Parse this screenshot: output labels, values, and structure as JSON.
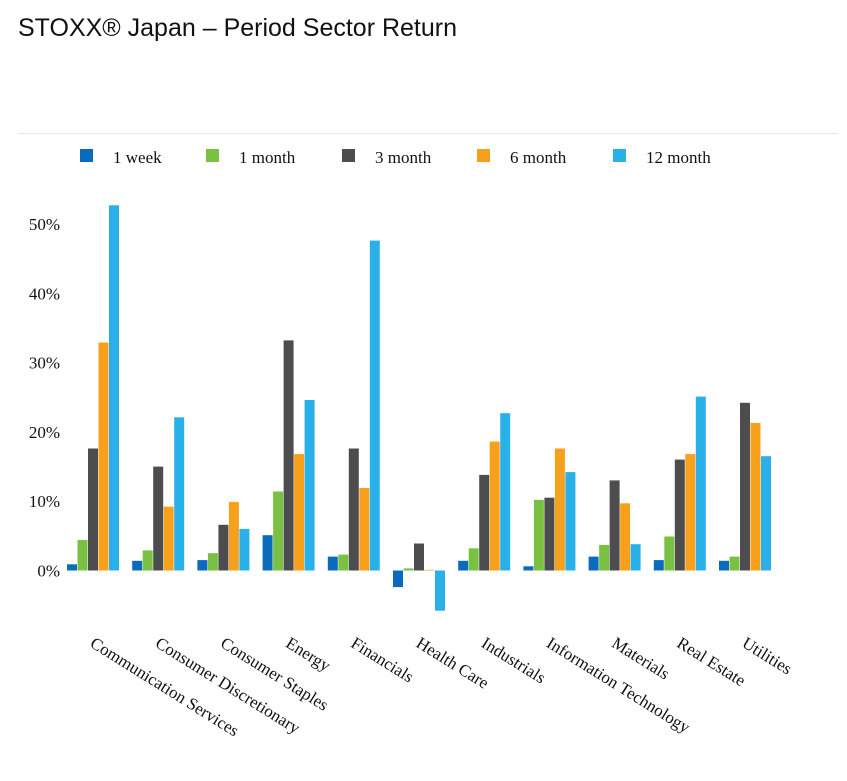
{
  "header": {
    "title": "STOXX® Japan – Period Sector Return"
  },
  "colors": {
    "1 week": "#0a6bbd",
    "1 month": "#7ac143",
    "3 month": "#4d4d4f",
    "6 month": "#f7a01b",
    "12 month": "#2ab0e8"
  },
  "chart_data": {
    "type": "bar",
    "title": "STOXX® Japan – Period Sector Return",
    "xlabel": "",
    "ylabel": "",
    "ylim": [
      -6,
      55
    ],
    "yticks": [
      "0%",
      "10%",
      "20%",
      "30%",
      "40%",
      "50%"
    ],
    "ytick_values": [
      0,
      10,
      20,
      30,
      40,
      50
    ],
    "grid": false,
    "legend": "top",
    "categories": [
      "Communication Services",
      "Consumer Discretionary",
      "Consumer Staples",
      "Energy",
      "Financials",
      "Health Care",
      "Industrials",
      "Information Technology",
      "Materials",
      "Real Estate",
      "Utilities"
    ],
    "series": [
      {
        "name": "1 week",
        "values": [
          0.9,
          1.4,
          1.5,
          5.1,
          2.0,
          -2.4,
          1.4,
          0.6,
          2.0,
          1.5,
          1.4
        ]
      },
      {
        "name": "1 month",
        "values": [
          4.4,
          2.9,
          2.5,
          11.4,
          2.3,
          0.3,
          3.2,
          10.2,
          3.7,
          4.9,
          2.0
        ]
      },
      {
        "name": "3 month",
        "values": [
          17.6,
          15.0,
          6.6,
          33.2,
          17.6,
          3.9,
          13.8,
          10.5,
          13.0,
          16.0,
          24.2
        ]
      },
      {
        "name": "6 month",
        "values": [
          32.9,
          9.2,
          9.9,
          16.8,
          11.9,
          0.1,
          18.6,
          17.6,
          9.7,
          16.8,
          21.3
        ]
      },
      {
        "name": "12 month",
        "values": [
          52.7,
          22.1,
          6.0,
          24.6,
          47.6,
          -5.8,
          22.7,
          14.2,
          3.8,
          25.1,
          16.5
        ]
      }
    ]
  }
}
